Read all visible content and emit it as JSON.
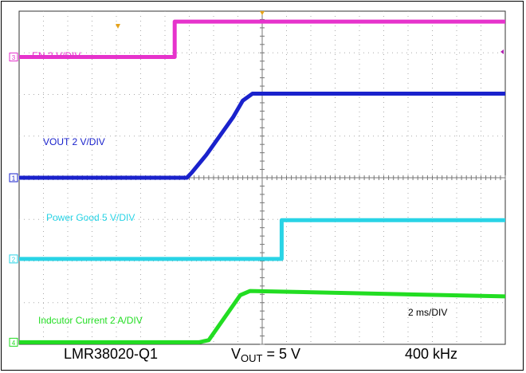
{
  "chart_data": {
    "type": "line",
    "xlim": [
      -10,
      10
    ],
    "ylim": [
      -4,
      4
    ],
    "grid": true,
    "time_scale": "2 ms/DIV",
    "channels": [
      {
        "id": "3",
        "label": "EN  2 V/DIV",
        "color": "#e633cc",
        "marker_level": 2.9,
        "points": [
          [
            -10,
            2.9
          ],
          [
            -3.6,
            2.9
          ],
          [
            -3.6,
            3.75
          ],
          [
            10,
            3.75
          ]
        ]
      },
      {
        "id": "1",
        "label": "VOUT  2 V/DIV",
        "color": "#1a22cc",
        "marker_level": 0.0,
        "points": [
          [
            -10,
            0.0
          ],
          [
            -3.1,
            0.0
          ],
          [
            -2.9,
            0.12
          ],
          [
            -2.3,
            0.55
          ],
          [
            -1.2,
            1.45
          ],
          [
            -0.8,
            1.85
          ],
          [
            -0.4,
            2.02
          ],
          [
            10,
            2.02
          ]
        ]
      },
      {
        "id": "2",
        "label": "Power Good  5 V/DIV",
        "color": "#29d4e6",
        "marker_level": -1.95,
        "points": [
          [
            -10,
            -1.95
          ],
          [
            0.8,
            -1.95
          ],
          [
            0.8,
            -1.02
          ],
          [
            10,
            -1.02
          ]
        ]
      },
      {
        "id": "4",
        "label": "Indcutor Current  2 A/DIV",
        "color": "#22dd22",
        "marker_level": -3.95,
        "points": [
          [
            -10,
            -3.95
          ],
          [
            -2.6,
            -3.95
          ],
          [
            -2.2,
            -3.9
          ],
          [
            -0.9,
            -2.82
          ],
          [
            -0.5,
            -2.72
          ],
          [
            10,
            -2.85
          ]
        ]
      }
    ],
    "annotations": {
      "device": "LMR38020-Q1",
      "vout_prefix": "V",
      "vout_sub": "OUT",
      "vout_value": " = 5 V",
      "frequency": "400 kHz"
    }
  }
}
